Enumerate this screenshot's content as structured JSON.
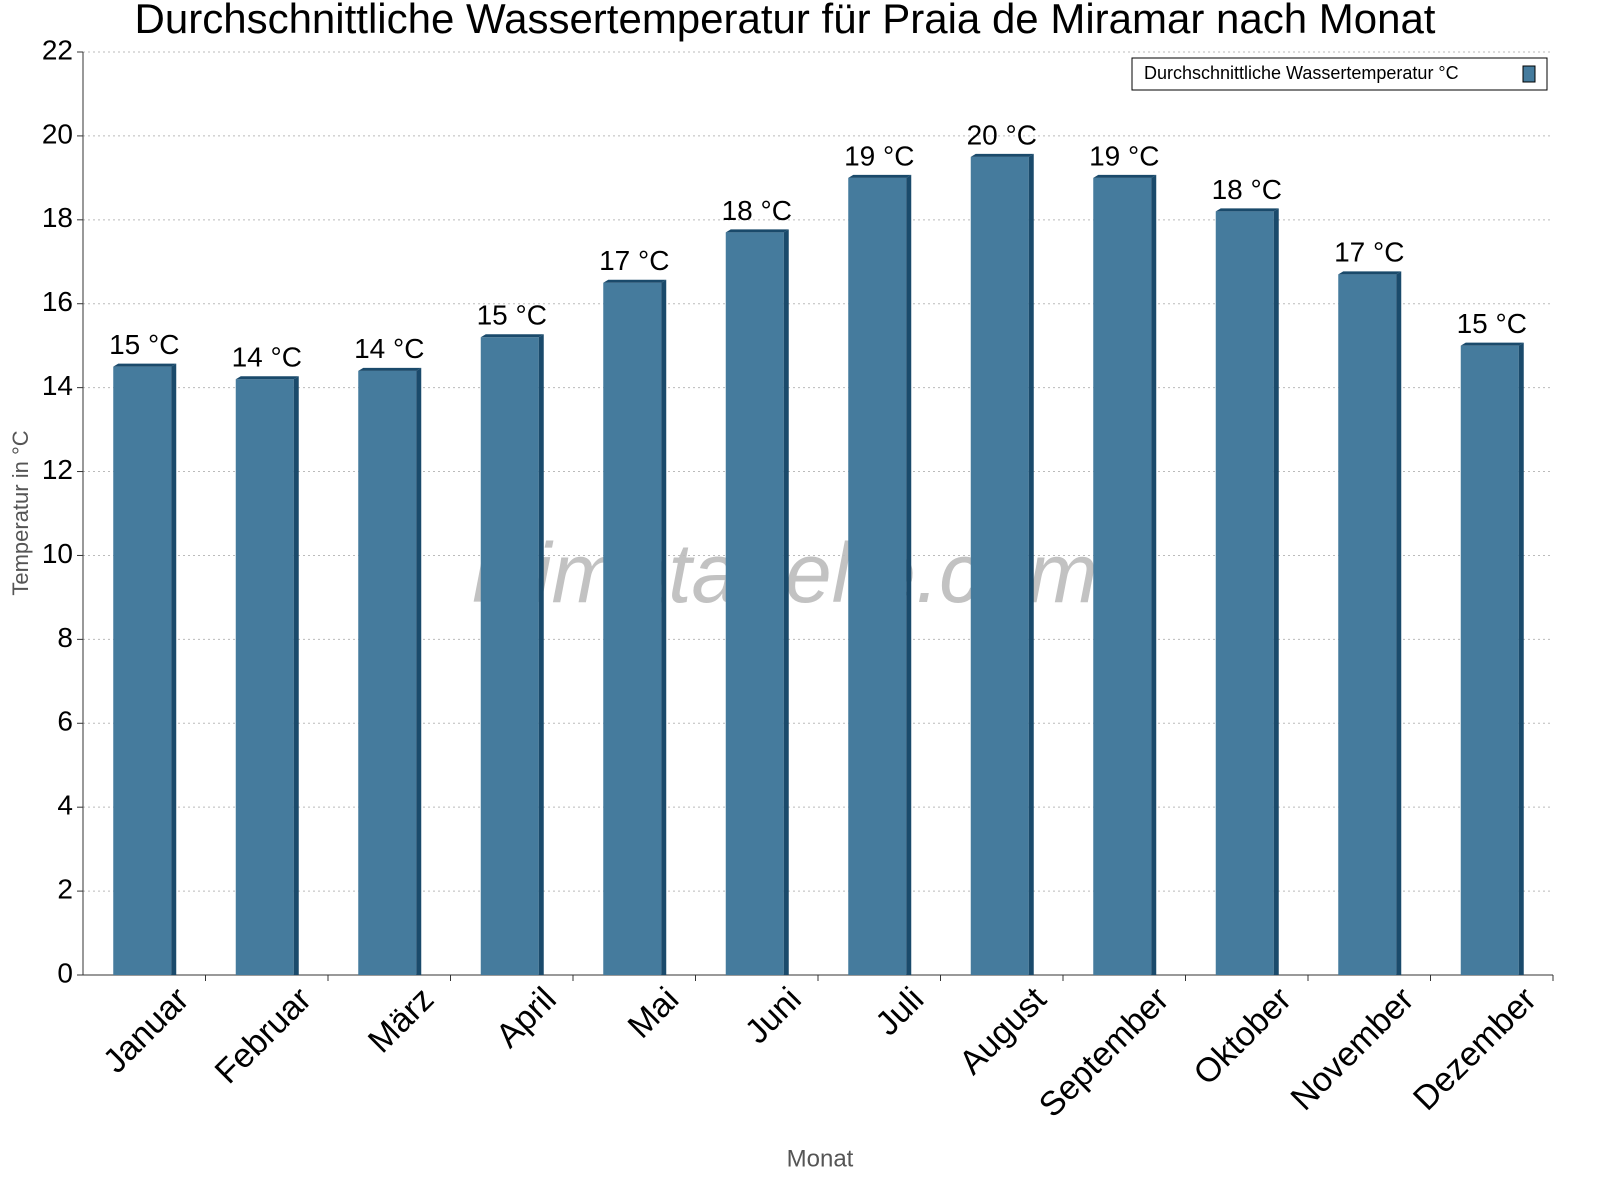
{
  "chart_data": {
    "type": "bar",
    "title": "Durchschnittliche Wassertemperatur für Praia de Miramar nach Monat",
    "x_label": "Monat",
    "y_label": "Temperatur in °C",
    "watermark": "klimatabelle.com",
    "categories": [
      "Januar",
      "Februar",
      "März",
      "April",
      "Mai",
      "Juni",
      "Juli",
      "August",
      "September",
      "Oktober",
      "November",
      "Dezember"
    ],
    "series": [
      {
        "name": "Durchschnittliche Wassertemperatur °C",
        "color": "#457b9d",
        "values": [
          14.5,
          14.2,
          14.4,
          15.2,
          16.5,
          17.7,
          19.0,
          19.5,
          19.0,
          18.2,
          16.7,
          15.0
        ],
        "value_labels": [
          "15 °C",
          "14 °C",
          "14 °C",
          "15 °C",
          "17 °C",
          "18 °C",
          "19 °C",
          "20 °C",
          "19 °C",
          "18 °C",
          "17 °C",
          "15 °C"
        ]
      }
    ],
    "ylim": [
      0,
      22
    ],
    "yticks": [
      0,
      2,
      4,
      6,
      8,
      10,
      12,
      14,
      16,
      18,
      20,
      22
    ],
    "grid": true,
    "legend": "top-right"
  }
}
